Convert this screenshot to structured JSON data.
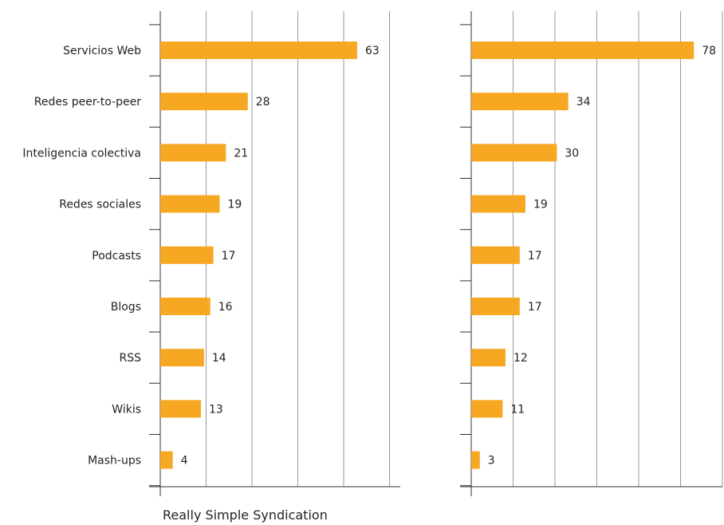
{
  "chart_data": [
    {
      "type": "bar",
      "orientation": "horizontal",
      "categories": [
        "Servicios Web",
        "Redes peer-to-peer",
        "Inteligencia colectiva",
        "Redes sociales",
        "Podcasts",
        "Blogs",
        "RSS",
        "Wikis",
        "Mash-ups"
      ],
      "values": [
        63,
        28,
        21,
        19,
        17,
        16,
        14,
        13,
        4
      ],
      "xlim": [
        0,
        75
      ],
      "grid": true,
      "bar_color": "#F7A823"
    },
    {
      "type": "bar",
      "orientation": "horizontal",
      "categories": [
        "Servicios Web",
        "Redes peer-to-peer",
        "Inteligencia colectiva",
        "Redes sociales",
        "Podcasts",
        "Blogs",
        "RSS",
        "Wikis",
        "Mash-ups"
      ],
      "values": [
        78,
        34,
        30,
        19,
        17,
        17,
        12,
        11,
        3
      ],
      "xlim": [
        0,
        88
      ],
      "grid": true,
      "bar_color": "#F7A823"
    }
  ],
  "footnote": "Really Simple Syndication"
}
